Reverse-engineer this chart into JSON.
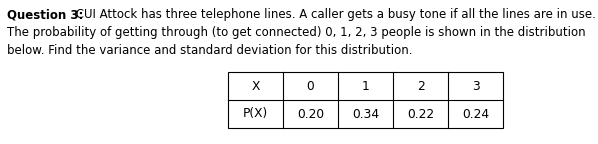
{
  "question_label": "Question 3:",
  "question_text_1": " CUI Attock has three telephone lines. A caller gets a busy tone if all the lines are in use.",
  "question_text_2": "The probability of getting through (to get connected) 0, 1, 2, 3 people is shown in the distribution",
  "question_text_3": "below. Find the variance and standard deviation for this distribution.",
  "table_headers": [
    "X",
    "0",
    "1",
    "2",
    "3"
  ],
  "table_row_label": "P(X)",
  "table_values": [
    "0.20",
    "0.34",
    "0.22",
    "0.24"
  ],
  "background_color": "#ffffff",
  "text_color": "#000000",
  "font_size_body": 8.5,
  "font_size_table": 8.8
}
